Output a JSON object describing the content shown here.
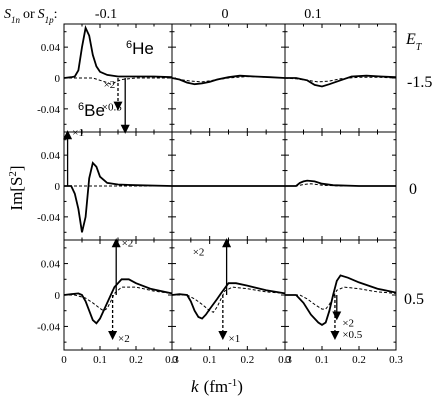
{
  "chart_data": {
    "type": "line",
    "layout": "3x3 panel grid",
    "param_label": "S",
    "param_label_subs": [
      "1n",
      "1p"
    ],
    "param_label_or": "or",
    "param_label_suffix": ":",
    "columns": [
      "-0.1",
      "0",
      "0.1"
    ],
    "row_header": "E",
    "row_header_sub": "T",
    "rows": [
      "-1.5",
      "0",
      "0.5"
    ],
    "ylabel": "Im[S",
    "ylabel_sup": "2",
    "ylabel_close": "]",
    "xlabel": "k",
    "xlabel_unit": "(fm",
    "xlabel_unit_sup": "-1",
    "xlabel_unit_close": ")",
    "xlim": [
      0,
      0.3
    ],
    "ylim": [
      -0.07,
      0.07
    ],
    "x_ticks": [
      0,
      0.1,
      0.2,
      0.3
    ],
    "x_tick_labels": [
      "0",
      "0.1",
      "0.2",
      "0.3"
    ],
    "y_ticks": [
      0.04,
      0,
      -0.04
    ],
    "y_tick_labels": [
      "0.04",
      "0",
      "-0.04"
    ],
    "series_styles": {
      "He6": "solid",
      "Be6": "dashed"
    },
    "panels": [
      {
        "row": 0,
        "col": 0,
        "He6": [
          [
            0,
            0
          ],
          [
            0.02,
            0.001
          ],
          [
            0.03,
            0.002
          ],
          [
            0.04,
            0.01
          ],
          [
            0.05,
            0.04
          ],
          [
            0.06,
            0.065
          ],
          [
            0.07,
            0.055
          ],
          [
            0.08,
            0.03
          ],
          [
            0.09,
            0.015
          ],
          [
            0.1,
            0.008
          ],
          [
            0.12,
            0.004
          ],
          [
            0.15,
            0.002
          ],
          [
            0.2,
            0.002
          ],
          [
            0.25,
            0.002
          ],
          [
            0.3,
            0.001
          ]
        ],
        "Be6": [
          [
            0,
            0
          ],
          [
            0.04,
            0
          ],
          [
            0.08,
            0
          ],
          [
            0.1,
            -0.003
          ],
          [
            0.12,
            -0.006
          ],
          [
            0.13,
            -0.008
          ],
          [
            0.14,
            -0.006
          ],
          [
            0.16,
            -0.002
          ],
          [
            0.2,
            0
          ],
          [
            0.25,
            0
          ],
          [
            0.3,
            0
          ]
        ]
      },
      {
        "row": 0,
        "col": 1,
        "He6": [
          [
            0,
            0
          ],
          [
            0.02,
            -0.002
          ],
          [
            0.04,
            -0.006
          ],
          [
            0.06,
            -0.008
          ],
          [
            0.08,
            -0.007
          ],
          [
            0.1,
            -0.005
          ],
          [
            0.12,
            -0.002
          ],
          [
            0.15,
            0.001
          ],
          [
            0.18,
            0.003
          ],
          [
            0.22,
            0.002
          ],
          [
            0.26,
            0.001
          ],
          [
            0.3,
            0
          ]
        ],
        "Be6": [
          [
            0,
            0
          ],
          [
            0.02,
            -0.002
          ],
          [
            0.05,
            -0.004
          ],
          [
            0.08,
            -0.005
          ],
          [
            0.11,
            -0.003
          ],
          [
            0.15,
            0
          ],
          [
            0.2,
            0.002
          ],
          [
            0.25,
            0.001
          ],
          [
            0.3,
            0
          ]
        ]
      },
      {
        "row": 0,
        "col": 2,
        "He6": [
          [
            0,
            0
          ],
          [
            0.03,
            0
          ],
          [
            0.06,
            -0.003
          ],
          [
            0.08,
            -0.009
          ],
          [
            0.1,
            -0.011
          ],
          [
            0.12,
            -0.008
          ],
          [
            0.15,
            -0.003
          ],
          [
            0.18,
            0.002
          ],
          [
            0.22,
            0.003
          ],
          [
            0.26,
            0.002
          ],
          [
            0.3,
            0.001
          ]
        ],
        "Be6": [
          [
            0,
            0
          ],
          [
            0.03,
            -0.001
          ],
          [
            0.06,
            -0.003
          ],
          [
            0.09,
            -0.005
          ],
          [
            0.12,
            -0.004
          ],
          [
            0.15,
            -0.001
          ],
          [
            0.2,
            0.001
          ],
          [
            0.25,
            0.001
          ],
          [
            0.3,
            0
          ]
        ]
      },
      {
        "row": 1,
        "col": 0,
        "He6": [
          [
            0,
            0
          ],
          [
            0.02,
            0
          ],
          [
            0.03,
            -0.01
          ],
          [
            0.04,
            -0.03
          ],
          [
            0.05,
            -0.06
          ],
          [
            0.06,
            -0.04
          ],
          [
            0.07,
            0.01
          ],
          [
            0.08,
            0.03
          ],
          [
            0.09,
            0.025
          ],
          [
            0.1,
            0.012
          ],
          [
            0.12,
            0.004
          ],
          [
            0.15,
            0.002
          ],
          [
            0.2,
            0.001
          ],
          [
            0.3,
            0
          ]
        ],
        "Be6": [
          [
            0,
            0
          ],
          [
            0.1,
            0
          ],
          [
            0.2,
            0
          ],
          [
            0.3,
            0
          ]
        ]
      },
      {
        "row": 1,
        "col": 1,
        "He6": [
          [
            0,
            0
          ],
          [
            0.1,
            0
          ],
          [
            0.2,
            0
          ],
          [
            0.3,
            0
          ]
        ],
        "Be6": [
          [
            0,
            0
          ],
          [
            0.1,
            0
          ],
          [
            0.2,
            0
          ],
          [
            0.3,
            0
          ]
        ]
      },
      {
        "row": 1,
        "col": 2,
        "He6": [
          [
            0,
            0
          ],
          [
            0.03,
            0
          ],
          [
            0.04,
            0.004
          ],
          [
            0.05,
            0.006
          ],
          [
            0.06,
            0.007
          ],
          [
            0.08,
            0.006
          ],
          [
            0.1,
            0.003
          ],
          [
            0.13,
            0.001
          ],
          [
            0.2,
            0
          ],
          [
            0.3,
            0
          ]
        ],
        "Be6": [
          [
            0,
            0
          ],
          [
            0.03,
            0
          ],
          [
            0.05,
            0.002
          ],
          [
            0.07,
            0.003
          ],
          [
            0.1,
            0.001
          ],
          [
            0.15,
            0
          ],
          [
            0.3,
            0
          ]
        ]
      },
      {
        "row": 2,
        "col": 0,
        "He6": [
          [
            0,
            0
          ],
          [
            0.02,
            0.001
          ],
          [
            0.04,
            0.002
          ],
          [
            0.05,
            0
          ],
          [
            0.06,
            -0.008
          ],
          [
            0.07,
            -0.02
          ],
          [
            0.08,
            -0.032
          ],
          [
            0.09,
            -0.036
          ],
          [
            0.1,
            -0.03
          ],
          [
            0.11,
            -0.02
          ],
          [
            0.12,
            -0.01
          ],
          [
            0.13,
            0
          ],
          [
            0.14,
            0.01
          ],
          [
            0.16,
            0.02
          ],
          [
            0.18,
            0.02
          ],
          [
            0.2,
            0.015
          ],
          [
            0.24,
            0.008
          ],
          [
            0.28,
            0.004
          ],
          [
            0.3,
            0.002
          ]
        ],
        "Be6": [
          [
            0,
            0
          ],
          [
            0.03,
            0
          ],
          [
            0.06,
            -0.004
          ],
          [
            0.08,
            -0.01
          ],
          [
            0.1,
            -0.017
          ],
          [
            0.11,
            -0.02
          ],
          [
            0.12,
            -0.017
          ],
          [
            0.13,
            -0.008
          ],
          [
            0.14,
            0.002
          ],
          [
            0.16,
            0.01
          ],
          [
            0.2,
            0.01
          ],
          [
            0.25,
            0.005
          ],
          [
            0.3,
            0.002
          ]
        ]
      },
      {
        "row": 2,
        "col": 1,
        "He6": [
          [
            0,
            0
          ],
          [
            0.02,
            0.001
          ],
          [
            0.04,
            0
          ],
          [
            0.05,
            -0.008
          ],
          [
            0.06,
            -0.02
          ],
          [
            0.07,
            -0.028
          ],
          [
            0.08,
            -0.03
          ],
          [
            0.09,
            -0.025
          ],
          [
            0.1,
            -0.018
          ],
          [
            0.12,
            -0.005
          ],
          [
            0.13,
            0.002
          ],
          [
            0.15,
            0.015
          ],
          [
            0.17,
            0.015
          ],
          [
            0.2,
            0.012
          ],
          [
            0.25,
            0.006
          ],
          [
            0.3,
            0.002
          ]
        ],
        "Be6": [
          [
            0,
            0
          ],
          [
            0.04,
            0
          ],
          [
            0.06,
            -0.005
          ],
          [
            0.08,
            -0.012
          ],
          [
            0.1,
            -0.02
          ],
          [
            0.11,
            -0.022
          ],
          [
            0.12,
            -0.015
          ],
          [
            0.13,
            -0.005
          ],
          [
            0.14,
            0.005
          ],
          [
            0.16,
            0.01
          ],
          [
            0.2,
            0.008
          ],
          [
            0.25,
            0.004
          ],
          [
            0.3,
            0.002
          ]
        ]
      },
      {
        "row": 2,
        "col": 2,
        "He6": [
          [
            0,
            0
          ],
          [
            0.03,
            0
          ],
          [
            0.05,
            -0.01
          ],
          [
            0.07,
            -0.025
          ],
          [
            0.09,
            -0.035
          ],
          [
            0.1,
            -0.038
          ],
          [
            0.11,
            -0.035
          ],
          [
            0.12,
            -0.02
          ],
          [
            0.13,
            0
          ],
          [
            0.14,
            0.018
          ],
          [
            0.15,
            0.025
          ],
          [
            0.17,
            0.022
          ],
          [
            0.2,
            0.016
          ],
          [
            0.25,
            0.008
          ],
          [
            0.3,
            0.003
          ]
        ],
        "Be6": [
          [
            0,
            0
          ],
          [
            0.04,
            0
          ],
          [
            0.06,
            -0.005
          ],
          [
            0.08,
            -0.012
          ],
          [
            0.1,
            -0.018
          ],
          [
            0.11,
            -0.018
          ],
          [
            0.12,
            -0.012
          ],
          [
            0.13,
            -0.003
          ],
          [
            0.14,
            0.006
          ],
          [
            0.16,
            0.01
          ],
          [
            0.2,
            0.008
          ],
          [
            0.25,
            0.004
          ],
          [
            0.3,
            0.002
          ]
        ]
      }
    ],
    "species_labels": [
      {
        "row": 0,
        "col": 0,
        "sup": "6",
        "name": "He"
      },
      {
        "row": 0,
        "col": 0,
        "sup": "6",
        "name": "Be"
      }
    ],
    "annotations": [
      {
        "row": 0,
        "col": 0,
        "text": "×2",
        "style": "dashed",
        "x": 0.15,
        "from": 0,
        "to": -0.04,
        "label_x": 0.11,
        "label_y": -0.013
      },
      {
        "row": 0,
        "col": 0,
        "text": "×0.5",
        "style": "solid",
        "x": 0.17,
        "from": 0,
        "to": -0.07,
        "label_x": 0.105,
        "label_y": -0.042
      },
      {
        "row": 1,
        "col": 0,
        "text": "×1",
        "style": "solid",
        "x": 0.01,
        "from": 0,
        "to": 0.07,
        "label_x": 0.023,
        "label_y": 0.065
      },
      {
        "row": 2,
        "col": 0,
        "text": "×2",
        "style": "solid",
        "x": 0.145,
        "from": 0,
        "to": 0.07,
        "label_x": 0.16,
        "label_y": 0.062
      },
      {
        "row": 2,
        "col": 0,
        "text": "×2",
        "style": "dashed",
        "x": 0.135,
        "from": 0,
        "to": -0.055,
        "label_x": 0.15,
        "label_y": -0.06
      },
      {
        "row": 2,
        "col": 1,
        "text": "×2",
        "style": "solid",
        "x": 0.145,
        "from": 0,
        "to": 0.07,
        "label_x": 0.055,
        "label_y": 0.05
      },
      {
        "row": 2,
        "col": 1,
        "text": "×1",
        "style": "dashed",
        "x": 0.135,
        "from": 0,
        "to": -0.055,
        "label_x": 0.15,
        "label_y": -0.06
      },
      {
        "row": 2,
        "col": 2,
        "text": "×2",
        "style": "solid",
        "x": 0.14,
        "from": 0,
        "to": -0.03,
        "label_x": 0.155,
        "label_y": -0.04
      },
      {
        "row": 2,
        "col": 2,
        "text": "×0.5",
        "style": "dashed",
        "x": 0.135,
        "from": 0,
        "to": -0.055,
        "label_x": 0.155,
        "label_y": -0.055
      }
    ]
  }
}
